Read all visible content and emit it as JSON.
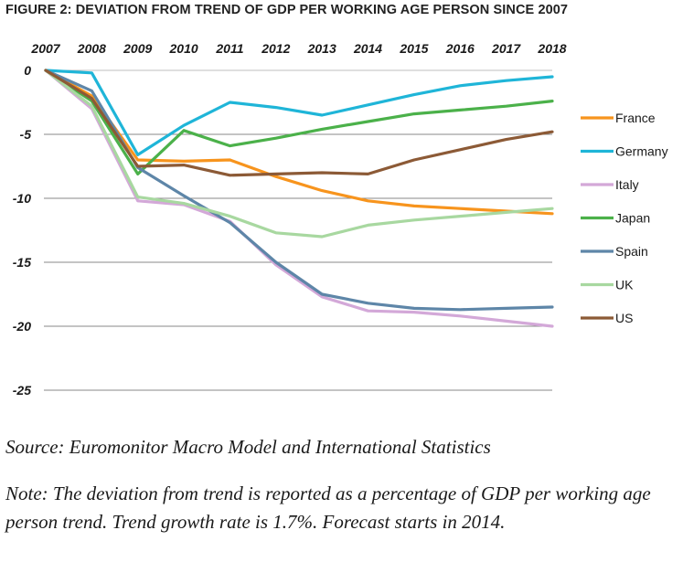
{
  "figure": {
    "title": "FIGURE 2: DEVIATION FROM TREND OF GDP PER WORKING AGE PERSON SINCE 2007",
    "source": "Source: Euromonitor Macro Model and International Statistics",
    "note": "Note:  The deviation from trend is reported as a percentage of GDP per working age person trend. Trend growth rate is 1.7%. Forecast starts in 2014."
  },
  "chart_data": {
    "type": "line",
    "title": "FIGURE 2: DEVIATION FROM TREND OF GDP PER WORKING AGE PERSON SINCE 2007",
    "xlabel": "",
    "ylabel": "",
    "x": [
      2007,
      2008,
      2009,
      2010,
      2011,
      2012,
      2013,
      2014,
      2015,
      2016,
      2017,
      2018
    ],
    "x_tick_labels": [
      "2007",
      "2008",
      "2009",
      "2010",
      "2011",
      "2012",
      "2013",
      "2014",
      "2015",
      "2016",
      "2017",
      "2018"
    ],
    "x_axis_position": "top",
    "ylim": [
      -25,
      0
    ],
    "y_ticks": [
      0,
      -5,
      -10,
      -15,
      -20,
      -25
    ],
    "y_tick_labels": [
      "0",
      "-5",
      "-10",
      "-15",
      "-20",
      "-25"
    ],
    "grid": true,
    "legend_position": "right",
    "series": [
      {
        "name": "France",
        "color": "#f7941d",
        "values": [
          0,
          -2.0,
          -7.0,
          -7.1,
          -7.0,
          -8.3,
          -9.4,
          -10.2,
          -10.6,
          -10.8,
          -11.0,
          -11.2
        ]
      },
      {
        "name": "Germany",
        "color": "#1fb5d8",
        "values": [
          0,
          -0.2,
          -6.6,
          -4.3,
          -2.5,
          -2.9,
          -3.5,
          -2.7,
          -1.9,
          -1.2,
          -0.8,
          -0.5
        ]
      },
      {
        "name": "Italy",
        "color": "#d3a8d8",
        "values": [
          0,
          -3.0,
          -10.2,
          -10.5,
          -11.8,
          -15.2,
          -17.7,
          -18.8,
          -18.9,
          -19.2,
          -19.6,
          -20.0
        ]
      },
      {
        "name": "Japan",
        "color": "#4bb14a",
        "values": [
          0,
          -2.4,
          -8.1,
          -4.7,
          -5.9,
          -5.3,
          -4.6,
          -4.0,
          -3.4,
          -3.1,
          -2.8,
          -2.4
        ]
      },
      {
        "name": "Spain",
        "color": "#5e86a8",
        "values": [
          0,
          -1.6,
          -7.6,
          -9.8,
          -11.9,
          -15.0,
          -17.5,
          -18.2,
          -18.6,
          -18.7,
          -18.6,
          -18.5
        ]
      },
      {
        "name": "UK",
        "color": "#a8d8a0",
        "values": [
          0,
          -2.8,
          -9.9,
          -10.4,
          -11.4,
          -12.7,
          -13.0,
          -12.1,
          -11.7,
          -11.4,
          -11.1,
          -10.8
        ]
      },
      {
        "name": "US",
        "color": "#8c5a36",
        "values": [
          0,
          -2.2,
          -7.5,
          -7.4,
          -8.2,
          -8.1,
          -8.0,
          -8.1,
          -7.0,
          -6.2,
          -5.4,
          -4.8
        ]
      }
    ]
  }
}
